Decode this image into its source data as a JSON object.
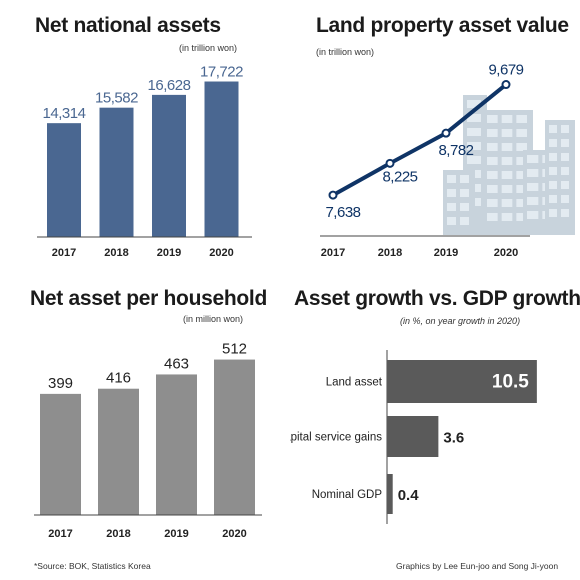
{
  "panels": {
    "net_national": {
      "title": "Net national assets",
      "unit": "(in trillion won)"
    },
    "land_value": {
      "title": "Land property asset value",
      "unit": "(in trillion won)"
    },
    "per_household": {
      "title": "Net asset per household",
      "unit": "(in million won)"
    },
    "growth": {
      "title": "Asset growth vs. GDP growth",
      "unit": "(in %, on year growth in 2020)"
    }
  },
  "colors": {
    "navy_bar": "#4a6791",
    "navy_line": "#0f3466",
    "navy_label": "#4a6791",
    "grey_bar": "#8e8e8e",
    "dark_bar": "#5a5a5a",
    "building": "#c8d3dc",
    "building_window": "#e3ebf1"
  },
  "chart_data": [
    {
      "type": "bar",
      "title": "Net national assets",
      "unit": "(in trillion won)",
      "categories": [
        "2017",
        "2018",
        "2019",
        "2020"
      ],
      "values": [
        14314,
        15582,
        16628,
        17722
      ],
      "value_labels": [
        "14,314",
        "15,582",
        "16,628",
        "17,722"
      ],
      "ylim": [
        5000,
        18500
      ]
    },
    {
      "type": "line",
      "title": "Land property asset value",
      "unit": "(in trillion won)",
      "categories": [
        "2017",
        "2018",
        "2019",
        "2020"
      ],
      "values": [
        7638,
        8225,
        8782,
        9679
      ],
      "value_labels": [
        "7,638",
        "8,225",
        "8,782",
        "9,679"
      ],
      "ylim": [
        7400,
        9800
      ]
    },
    {
      "type": "bar",
      "title": "Net asset per household",
      "unit": "(in million won)",
      "categories": [
        "2017",
        "2018",
        "2019",
        "2020"
      ],
      "values": [
        399,
        416,
        463,
        512
      ],
      "value_labels": [
        "399",
        "416",
        "463",
        "512"
      ],
      "ylim": [
        0,
        560
      ]
    },
    {
      "type": "bar",
      "orientation": "horizontal",
      "title": "Asset growth vs. GDP growth",
      "unit": "(in %, on year growth in 2020)",
      "categories": [
        "Land asset",
        "Capital service gains",
        "Nominal GDP"
      ],
      "values": [
        10.5,
        3.6,
        0.4
      ],
      "value_labels": [
        "10.5",
        "3.6",
        "0.4"
      ],
      "xlim": [
        0,
        11
      ]
    }
  ],
  "footer": {
    "source": "*Source: BOK, Statistics Korea",
    "credit": "Graphics by Lee Eun-joo and Song Ji-yoon"
  }
}
